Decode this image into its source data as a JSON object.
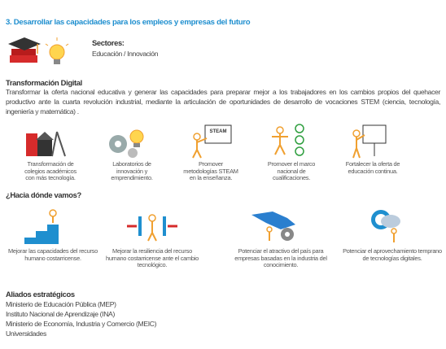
{
  "title": "3. Desarrollar las capacidades para los empleos y empresas del futuro",
  "sectors": {
    "label": "Sectores:",
    "value": "Educación / Innovación"
  },
  "transformation": {
    "heading": "Transformación Digital",
    "text": "Transformar la oferta nacional educativa y generar las capacidades para preparar mejor a los trabajadores en los cambios propios del quehacer productivo ante la cuarta revolución industrial, mediante la articulación de oportunidades de desarrollo de vocaciones STEM (ciencia, tecnología, ingeniería y matemática) .",
    "steam_label": "STEAM",
    "items": [
      "Transformación de colegios académicos con más tecnología.",
      "Laboratorios de innovación y emprendimiento.",
      "Promover metodologías STEAM en la enseñanza.",
      "Promover el marco nacional de cualificaciones.",
      "Fortalecer la oferta de educación continua."
    ]
  },
  "future": {
    "heading": "¿Hacia dónde vamos?",
    "items": [
      "Mejorar las capacidades del recurso humano costarricense.",
      "Mejorar la resiliencia del recurso humano costarricense ante el cambio tecnológico.",
      "Potenciar el atractivo del país para empresas basadas en la industria del conocimiento.",
      "Potenciar el aprovechamiento temprano de tecnologías digitales."
    ]
  },
  "allies": {
    "heading": "Aliados estratégicos",
    "items": [
      "Ministerio de Educación Pública (MEP)",
      "Instituto Nacional de Aprendizaje (INA)",
      "Ministerio de Economía, Industria y Comercio (MEIC)",
      "Universidades"
    ]
  }
}
